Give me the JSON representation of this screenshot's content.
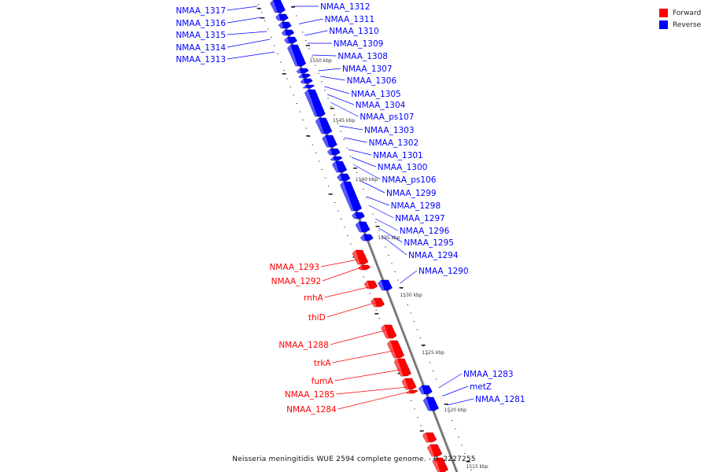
{
  "caption": "Neisseria meningitidis WUE 2594 complete genome. - 0..2227255",
  "legend": [
    {
      "label": "Forward",
      "color": "#ff0000"
    },
    {
      "label": "Reverse",
      "color": "#0000ff"
    }
  ],
  "colors": {
    "forward": "#ff0000",
    "reverse": "#0000ff",
    "backbone": "#888888"
  },
  "ticks": [
    "1550 kbp",
    "1545 kbp",
    "1540 kbp",
    "1535 kbp",
    "1530 kbp",
    "1525 kbp",
    "1520 kbp",
    "1515 kbp"
  ],
  "genes_left": [
    {
      "label": "NMAA_1317",
      "strand": "reverse"
    },
    {
      "label": "NMAA_1316",
      "strand": "reverse"
    },
    {
      "label": "NMAA_1315",
      "strand": "reverse"
    },
    {
      "label": "NMAA_1314",
      "strand": "reverse"
    },
    {
      "label": "NMAA_1313",
      "strand": "reverse"
    },
    {
      "label": "NMAA_1293",
      "strand": "forward"
    },
    {
      "label": "NMAA_1292",
      "strand": "forward"
    },
    {
      "label": "rnhA",
      "strand": "forward"
    },
    {
      "label": "thiD",
      "strand": "forward"
    },
    {
      "label": "NMAA_1288",
      "strand": "forward"
    },
    {
      "label": "trkA",
      "strand": "forward"
    },
    {
      "label": "fumA",
      "strand": "forward"
    },
    {
      "label": "NMAA_1285",
      "strand": "forward"
    },
    {
      "label": "NMAA_1284",
      "strand": "forward"
    }
  ],
  "genes_right": [
    {
      "label": "NMAA_1312",
      "strand": "reverse"
    },
    {
      "label": "NMAA_1311",
      "strand": "reverse"
    },
    {
      "label": "NMAA_1310",
      "strand": "reverse"
    },
    {
      "label": "NMAA_1309",
      "strand": "reverse"
    },
    {
      "label": "NMAA_1308",
      "strand": "reverse"
    },
    {
      "label": "NMAA_1307",
      "strand": "reverse"
    },
    {
      "label": "NMAA_1306",
      "strand": "reverse"
    },
    {
      "label": "NMAA_1305",
      "strand": "reverse"
    },
    {
      "label": "NMAA_1304",
      "strand": "reverse"
    },
    {
      "label": "NMAA_ps107",
      "strand": "reverse"
    },
    {
      "label": "NMAA_1303",
      "strand": "reverse"
    },
    {
      "label": "NMAA_1302",
      "strand": "reverse"
    },
    {
      "label": "NMAA_1301",
      "strand": "reverse"
    },
    {
      "label": "NMAA_1300",
      "strand": "reverse"
    },
    {
      "label": "NMAA_ps106",
      "strand": "reverse"
    },
    {
      "label": "NMAA_1299",
      "strand": "reverse"
    },
    {
      "label": "NMAA_1298",
      "strand": "reverse"
    },
    {
      "label": "NMAA_1297",
      "strand": "reverse"
    },
    {
      "label": "NMAA_1296",
      "strand": "reverse"
    },
    {
      "label": "NMAA_1295",
      "strand": "reverse"
    },
    {
      "label": "NMAA_1294",
      "strand": "reverse"
    },
    {
      "label": "NMAA_1290",
      "strand": "reverse"
    },
    {
      "label": "NMAA_1283",
      "strand": "reverse"
    },
    {
      "label": "metZ",
      "strand": "reverse"
    },
    {
      "label": "NMAA_1281",
      "strand": "reverse"
    }
  ]
}
